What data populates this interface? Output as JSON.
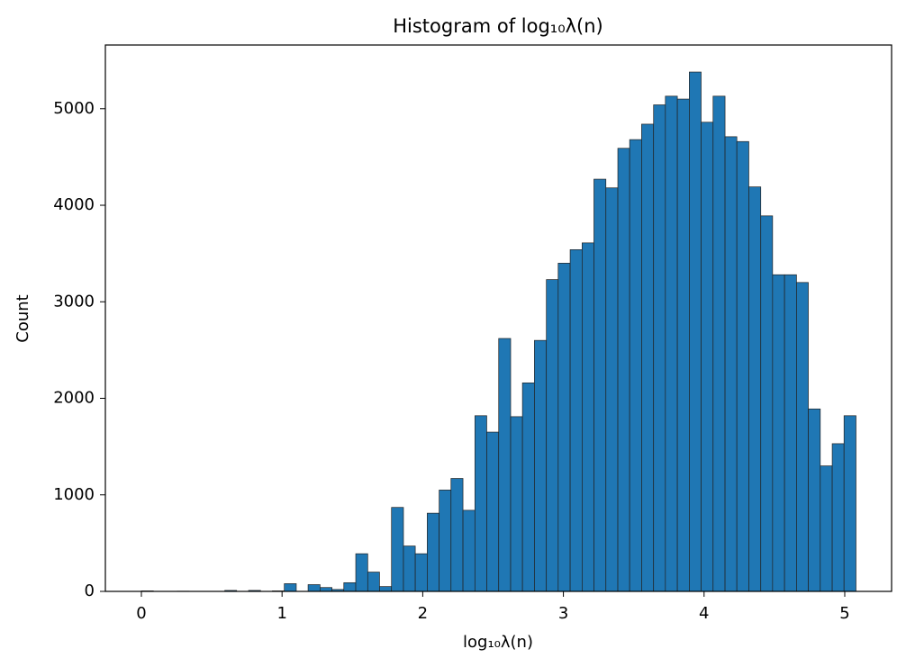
{
  "chart_data": {
    "type": "histogram",
    "title": "Histogram of log₁₀λ(n)",
    "x_label": "log₁₀λ(n)",
    "y_label": "Count",
    "bins": [
      0,
      0.085,
      0.169,
      0.254,
      0.339,
      0.423,
      0.508,
      0.593,
      0.677,
      0.762,
      0.847,
      0.931,
      1.016,
      1.101,
      1.185,
      1.27,
      1.355,
      1.439,
      1.524,
      1.609,
      1.693,
      1.778,
      1.863,
      1.947,
      2.032,
      2.117,
      2.201,
      2.286,
      2.371,
      2.455,
      2.54,
      2.625,
      2.709,
      2.794,
      2.879,
      2.963,
      3.048,
      3.133,
      3.217,
      3.302,
      3.387,
      3.471,
      3.556,
      3.641,
      3.725,
      3.81,
      3.895,
      3.979,
      4.064,
      4.149,
      4.233,
      4.318,
      4.403,
      4.487,
      4.572,
      4.657,
      4.741,
      4.826,
      4.911,
      4.995,
      5.08
    ],
    "values": [
      5,
      0,
      0,
      2,
      0,
      0,
      0,
      10,
      0,
      10,
      0,
      5,
      80,
      0,
      70,
      40,
      20,
      90,
      390,
      200,
      50,
      870,
      470,
      390,
      810,
      1050,
      1170,
      840,
      1820,
      1650,
      2620,
      1810,
      2160,
      2600,
      3230,
      3400,
      3540,
      3610,
      4270,
      4180,
      4590,
      4680,
      4840,
      5040,
      5130,
      5100,
      5380,
      4860,
      5130,
      4710,
      4660,
      4190,
      3890,
      3280,
      3280,
      3200,
      1890,
      1300,
      1530,
      1820
    ],
    "color": "#1f77b4",
    "edge_color": "#222222",
    "xlim": [
      -0.256,
      5.333
    ],
    "ylim": [
      0,
      5660
    ],
    "xticks": [
      0,
      1,
      2,
      3,
      4,
      5
    ],
    "yticks": [
      0,
      1000,
      2000,
      3000,
      4000,
      5000
    ]
  }
}
